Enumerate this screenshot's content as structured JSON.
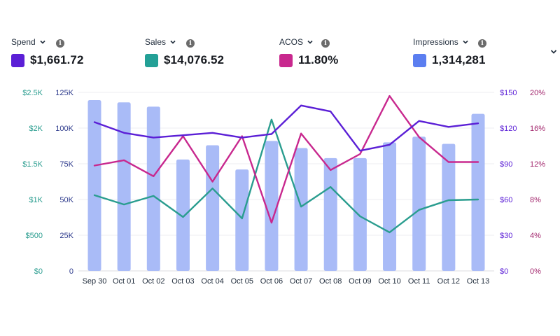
{
  "metrics": [
    {
      "label": "Spend",
      "value": "$1,661.72",
      "color": "#5b1fd6",
      "icon": "info-icon"
    },
    {
      "label": "Sales",
      "value": "$14,076.52",
      "color": "#23a096",
      "icon": "info-icon"
    },
    {
      "label": "ACOS",
      "value": "11.80%",
      "color": "#c8288e",
      "icon": "info-icon"
    },
    {
      "label": "Impressions",
      "value": "1,314,281",
      "color": "#5b7ef0",
      "icon": "info-icon"
    }
  ],
  "info_glyph": "i",
  "colors": {
    "bar": "#a9bbf7",
    "spend_line": "#5b1fd6",
    "sales_line": "#2a9d8f",
    "acos_line": "#c8288e",
    "sales_axis": "#2a9d8f",
    "impressions_axis": "#2d3a8c",
    "spend_axis": "#5b1fd6",
    "acos_axis": "#a3286e",
    "grid": "#ececf0",
    "xtick": "#232f3e"
  },
  "chart_data": {
    "type": "bar",
    "categories": [
      "Sep 30",
      "Oct 01",
      "Oct 02",
      "Oct 03",
      "Oct 04",
      "Oct 05",
      "Oct 06",
      "Oct 07",
      "Oct 08",
      "Oct 09",
      "Oct 10",
      "Oct 11",
      "Oct 12",
      "Oct 13"
    ],
    "series": [
      {
        "name": "Impressions",
        "type": "bar",
        "axis": "impressions",
        "values": [
          119600,
          118000,
          115000,
          78000,
          88000,
          71000,
          91000,
          86000,
          79000,
          79000,
          90000,
          94000,
          89000,
          110000
        ]
      },
      {
        "name": "Spend",
        "type": "line",
        "axis": "spend",
        "values": [
          125,
          116,
          112,
          114,
          116,
          112,
          115,
          139,
          134,
          101,
          106,
          126,
          121,
          124
        ]
      },
      {
        "name": "Sales",
        "type": "line",
        "axis": "sales",
        "values": [
          1060,
          930,
          1050,
          755,
          1155,
          735,
          2120,
          900,
          1175,
          765,
          540,
          855,
          990,
          1000
        ]
      },
      {
        "name": "ACOS",
        "type": "line",
        "axis": "acos",
        "values": [
          11.8,
          12.4,
          10.6,
          15.1,
          10.0,
          15.1,
          5.4,
          15.4,
          11.3,
          13.1,
          19.6,
          15.0,
          12.2,
          12.2
        ]
      }
    ],
    "axes": {
      "sales": {
        "position": "left-outer",
        "range": [
          0,
          2500
        ],
        "ticks": [
          "$0",
          "$500",
          "$1K",
          "$1.5K",
          "$2K",
          "$2.5K"
        ]
      },
      "impressions": {
        "position": "left-inner",
        "range": [
          0,
          125000
        ],
        "ticks": [
          "0",
          "25K",
          "50K",
          "75K",
          "100K",
          "125K"
        ]
      },
      "spend": {
        "position": "right-inner",
        "range": [
          0,
          150
        ],
        "ticks": [
          "$0",
          "$30",
          "$60",
          "$90",
          "$120",
          "$150"
        ]
      },
      "acos": {
        "position": "right-outer",
        "range": [
          0,
          20
        ],
        "ticks": [
          "0%",
          "4%",
          "8%",
          "12%",
          "16%",
          "20%"
        ]
      }
    },
    "grid": true,
    "title": "",
    "xlabel": "",
    "ylabel": ""
  }
}
